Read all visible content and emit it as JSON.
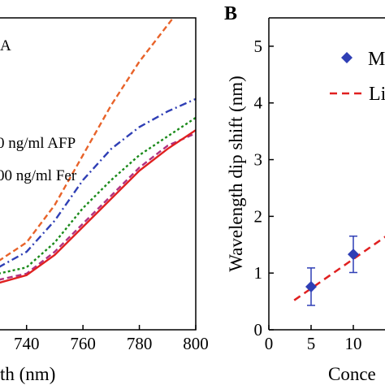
{
  "chart_data": [
    {
      "type": "line",
      "panel_label": "A",
      "xlabel_visible": "th (nm)",
      "xlim": [
        730,
        800
      ],
      "x_ticks": [
        "740",
        "760",
        "780",
        "800"
      ],
      "legend": [
        "0 ng/ml AFP",
        "00 ng/ml Fer"
      ],
      "series": [
        {
          "color": "#e8632a",
          "style": "dashed",
          "x": [
            730,
            740,
            750,
            760,
            770,
            780,
            792
          ],
          "y": [
            0.22,
            0.28,
            0.4,
            0.56,
            0.72,
            0.86,
            1.0
          ]
        },
        {
          "color": "#2f3fb5",
          "style": "dashdot",
          "x": [
            730,
            740,
            750,
            760,
            770,
            780,
            790,
            800
          ],
          "y": [
            0.2,
            0.25,
            0.35,
            0.48,
            0.58,
            0.65,
            0.7,
            0.74
          ]
        },
        {
          "color": "#1a8a1a",
          "style": "dotted",
          "x": [
            730,
            740,
            750,
            760,
            770,
            780,
            790,
            800
          ],
          "y": [
            0.18,
            0.2,
            0.28,
            0.39,
            0.48,
            0.56,
            0.62,
            0.68
          ]
        },
        {
          "color": "#b03080",
          "style": "dashed",
          "x": [
            730,
            740,
            750,
            760,
            770,
            780,
            790,
            800
          ],
          "y": [
            0.16,
            0.18,
            0.25,
            0.34,
            0.43,
            0.52,
            0.59,
            0.63
          ]
        },
        {
          "color": "#e02020",
          "style": "solid",
          "x": [
            730,
            740,
            750,
            760,
            770,
            780,
            790,
            800
          ],
          "y": [
            0.15,
            0.175,
            0.24,
            0.33,
            0.42,
            0.51,
            0.58,
            0.64
          ]
        }
      ]
    },
    {
      "type": "scatter",
      "panel_label": "B",
      "ylabel": "Wavelength dip shift (nm)",
      "xlabel_visible": "Conce",
      "xlim": [
        0,
        20
      ],
      "ylim": [
        0,
        5.5
      ],
      "x_ticks": [
        "0",
        "5",
        "10"
      ],
      "y_ticks": [
        "0",
        "1",
        "2",
        "3",
        "4",
        "5"
      ],
      "legend": [
        {
          "label": "M",
          "marker": "diamond",
          "color": "#2f3fb5"
        },
        {
          "label": "Li",
          "style": "dashed",
          "color": "#e02020"
        }
      ],
      "points": [
        {
          "x": 5,
          "y": 0.76,
          "err": 0.33
        },
        {
          "x": 10,
          "y": 1.33,
          "err": 0.32
        }
      ],
      "fit_line": {
        "x": [
          3,
          16
        ],
        "y": [
          0.52,
          1.87
        ]
      }
    }
  ]
}
